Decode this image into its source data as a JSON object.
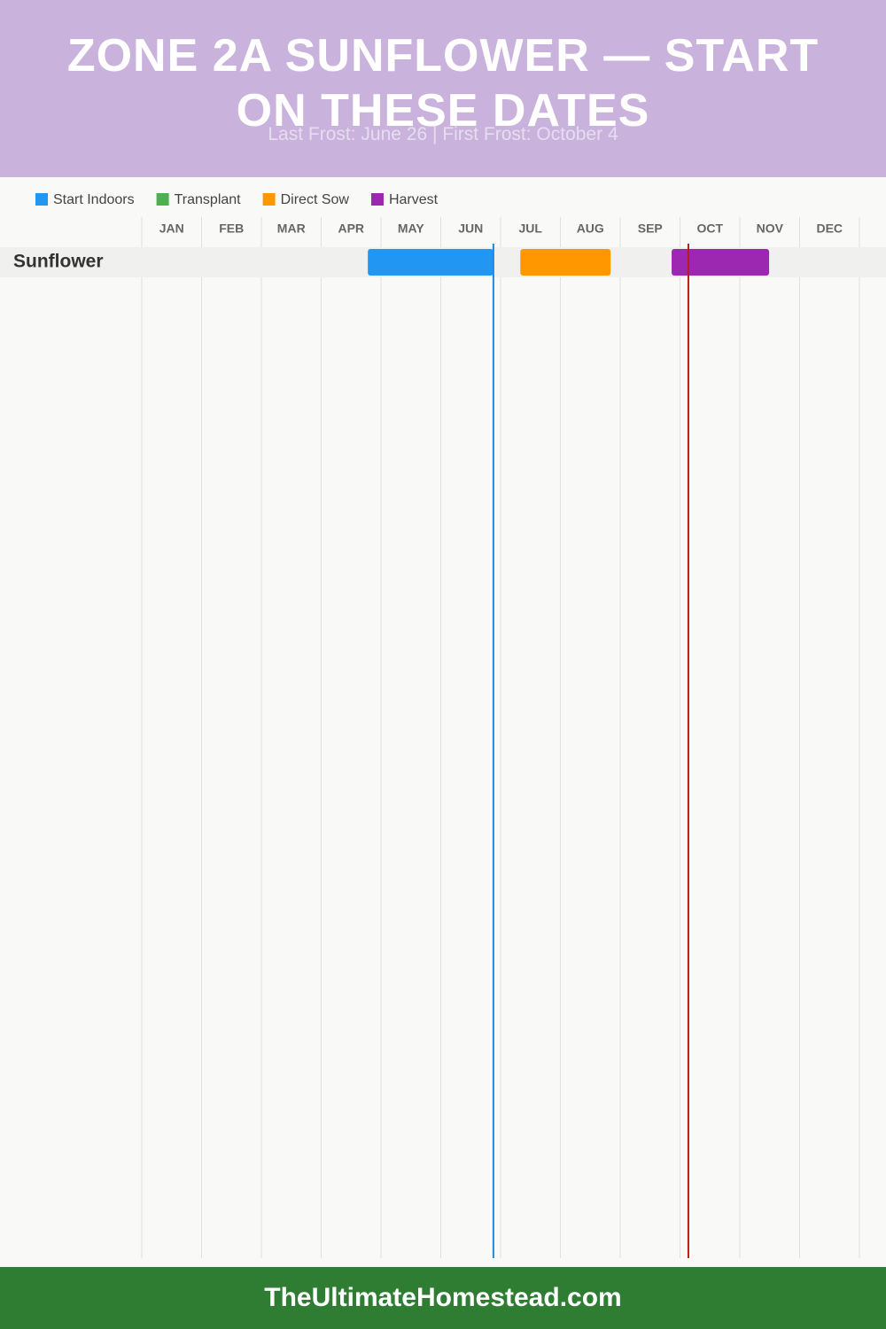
{
  "chart_data": {
    "type": "gantt",
    "title": "ZONE 2A SUNFLOWER — START ON THESE DATES",
    "subtitle": "Last Frost: June 26 | First Frost: October 4",
    "categories": [
      "Sunflower"
    ],
    "xlim": [
      0,
      12
    ],
    "xticks": [
      {
        "value": 0,
        "label": "JAN"
      },
      {
        "value": 1,
        "label": "FEB"
      },
      {
        "value": 2,
        "label": "MAR"
      },
      {
        "value": 3,
        "label": "APR"
      },
      {
        "value": 4,
        "label": "MAY"
      },
      {
        "value": 5,
        "label": "JUN"
      },
      {
        "value": 6,
        "label": "JUL"
      },
      {
        "value": 7,
        "label": "AUG"
      },
      {
        "value": 8,
        "label": "SEP"
      },
      {
        "value": 9,
        "label": "OCT"
      },
      {
        "value": 10,
        "label": "NOV"
      },
      {
        "value": 11,
        "label": "DEC"
      }
    ],
    "grid": true,
    "series": [
      {
        "name": "Start Indoors",
        "color": "#2196f3",
        "values": [
          [
            3.78,
            5.88
          ]
        ]
      },
      {
        "name": "Transplant",
        "color": "#4caf50",
        "values": [
          null
        ]
      },
      {
        "name": "Direct Sow",
        "color": "#ff9800",
        "values": [
          [
            6.33,
            7.84
          ]
        ]
      },
      {
        "name": "Harvest",
        "color": "#9c27b0",
        "values": [
          [
            8.86,
            10.49
          ]
        ]
      }
    ],
    "frost_lines": [
      {
        "value": 5.88,
        "color": "#1e88e5"
      },
      {
        "value": 9.14,
        "color": "#b71c1c"
      }
    ]
  },
  "footer": "TheUltimateHomestead.com"
}
